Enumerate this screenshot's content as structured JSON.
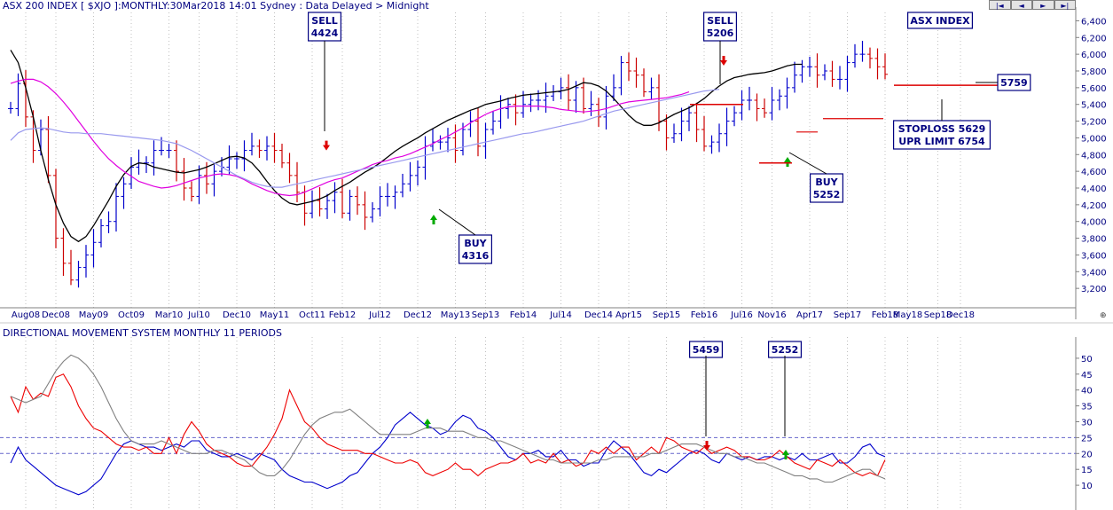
{
  "header": {
    "title": "ASX 200 INDEX [ $XJO ]:MONTHLY:30Mar2018 14:01 Sydney : Data Delayed > Midnight",
    "nav": [
      {
        "label": "|◄",
        "icon": "first-page-icon"
      },
      {
        "label": "◄",
        "icon": "previous-icon"
      },
      {
        "label": "►",
        "icon": "next-icon"
      },
      {
        "label": "►|",
        "icon": "last-page-icon"
      }
    ]
  },
  "colors": {
    "up_bar": "#0000cc",
    "down_bar": "#cc0000",
    "ma_fast": "#000000",
    "ma_mid": "#e000e0",
    "ma_slow": "#9999ee",
    "di_plus": "#0000cc",
    "di_minus": "#ee0000",
    "adx": "#808080",
    "buy_arrow": "#00aa00",
    "sell_arrow": "#dd0000",
    "label_border": "#000080",
    "level_line": "#dd0000"
  },
  "chart_data": [
    {
      "type": "ohlc",
      "panel": "price",
      "title": "ASX 200 INDEX [ $XJO ]:MONTHLY",
      "ylim": [
        3000,
        6500
      ],
      "xlim": [
        0,
        136
      ],
      "yticks": [
        3200,
        3400,
        3600,
        3800,
        4000,
        4200,
        4400,
        4600,
        4800,
        5000,
        5200,
        5400,
        5600,
        5800,
        6000,
        6200,
        6400
      ],
      "ytick_labels": [
        "3,200",
        "3,400",
        "3,600",
        "3,800",
        "4,000",
        "4,200",
        "4,400",
        "4,600",
        "4,800",
        "5,000",
        "5,200",
        "5,400",
        "5,600",
        "5,800",
        "6,000",
        "6,200",
        "6,400"
      ],
      "xtick_labels": [
        {
          "label": "Aug08",
          "x": 2
        },
        {
          "label": "Dec08",
          "x": 6
        },
        {
          "label": "May09",
          "x": 11
        },
        {
          "label": "Oct09",
          "x": 16
        },
        {
          "label": "Mar10",
          "x": 21
        },
        {
          "label": "Jul10",
          "x": 25
        },
        {
          "label": "Dec10",
          "x": 30
        },
        {
          "label": "May11",
          "x": 35
        },
        {
          "label": "Oct11",
          "x": 40
        },
        {
          "label": "Feb12",
          "x": 44
        },
        {
          "label": "Jul12",
          "x": 49
        },
        {
          "label": "Dec12",
          "x": 54
        },
        {
          "label": "May13",
          "x": 59
        },
        {
          "label": "Sep13",
          "x": 63
        },
        {
          "label": "Feb14",
          "x": 68
        },
        {
          "label": "Jul14",
          "x": 73
        },
        {
          "label": "Dec14",
          "x": 78
        },
        {
          "label": "Apr15",
          "x": 82
        },
        {
          "label": "Sep15",
          "x": 87
        },
        {
          "label": "Feb16",
          "x": 92
        },
        {
          "label": "Jul16",
          "x": 97
        },
        {
          "label": "Nov16",
          "x": 101
        },
        {
          "label": "Apr17",
          "x": 106
        },
        {
          "label": "Sep17",
          "x": 111
        },
        {
          "label": "Feb18",
          "x": 116
        },
        {
          "label": "May18",
          "x": 119
        },
        {
          "label": "Sep18",
          "x": 123
        },
        {
          "label": "Dec18",
          "x": 126
        }
      ],
      "bars_start_x": 0,
      "close": [
        5350,
        5650,
        5250,
        4850,
        5100,
        4550,
        3800,
        3500,
        3300,
        3450,
        3600,
        3750,
        3950,
        4000,
        4300,
        4450,
        4650,
        4700,
        4700,
        4850,
        4850,
        4850,
        4600,
        4400,
        4300,
        4550,
        4450,
        4600,
        4650,
        4750,
        4750,
        4850,
        4900,
        4850,
        4900,
        4850,
        4700,
        4550,
        4350,
        4100,
        4250,
        4150,
        4250,
        4350,
        4100,
        4300,
        4200,
        4050,
        4150,
        4300,
        4300,
        4350,
        4450,
        4550,
        4650,
        4900,
        4950,
        4950,
        5000,
        4850,
        5100,
        5200,
        4900,
        5100,
        5200,
        5350,
        5400,
        5300,
        5400,
        5450,
        5450,
        5500,
        5550,
        5600,
        5450,
        5600,
        5350,
        5400,
        5250,
        5500,
        5600,
        5900,
        5800,
        5750,
        5550,
        5600,
        5200,
        5000,
        5050,
        5200,
        5300,
        5100,
        4900,
        4950,
        5050,
        5200,
        5300,
        5450,
        5450,
        5350,
        5300,
        5450,
        5500,
        5600,
        5750,
        5850,
        5850,
        5750,
        5800,
        5700,
        5700,
        5900,
        6000,
        6000,
        5950,
        5850,
        5760
      ],
      "series": [
        {
          "name": "",
          "role": "ma_fast",
          "start_x": 0,
          "values": [
            6050,
            5900,
            5600,
            5250,
            4850,
            4500,
            4200,
            3980,
            3820,
            3760,
            3820,
            3950,
            4100,
            4250,
            4420,
            4560,
            4660,
            4700,
            4690,
            4650,
            4630,
            4610,
            4590,
            4580,
            4600,
            4620,
            4650,
            4690,
            4730,
            4770,
            4780,
            4760,
            4700,
            4600,
            4480,
            4370,
            4280,
            4220,
            4200,
            4220,
            4240,
            4270,
            4310,
            4370,
            4420,
            4470,
            4530,
            4590,
            4640,
            4700,
            4770,
            4840,
            4900,
            4950,
            5000,
            5060,
            5110,
            5160,
            5210,
            5250,
            5290,
            5330,
            5360,
            5400,
            5420,
            5440,
            5470,
            5490,
            5510,
            5520,
            5530,
            5540,
            5550,
            5560,
            5580,
            5620,
            5660,
            5650,
            5620,
            5560,
            5470,
            5370,
            5270,
            5190,
            5150,
            5150,
            5180,
            5230,
            5280,
            5320,
            5360,
            5410,
            5470,
            5550,
            5620,
            5680,
            5720,
            5740,
            5760,
            5770,
            5780,
            5800,
            5830,
            5860,
            5880,
            5880
          ]
        },
        {
          "name": "",
          "role": "ma_mid",
          "start_x": 0,
          "values": [
            5650,
            5680,
            5700,
            5700,
            5670,
            5610,
            5530,
            5430,
            5320,
            5200,
            5080,
            4960,
            4850,
            4750,
            4670,
            4600,
            4540,
            4480,
            4450,
            4420,
            4400,
            4410,
            4430,
            4460,
            4490,
            4520,
            4540,
            4560,
            4570,
            4560,
            4540,
            4500,
            4450,
            4410,
            4370,
            4340,
            4320,
            4310,
            4320,
            4350,
            4390,
            4430,
            4470,
            4500,
            4520,
            4560,
            4600,
            4640,
            4680,
            4710,
            4730,
            4760,
            4780,
            4810,
            4850,
            4890,
            4930,
            4980,
            5020,
            5070,
            5120,
            5180,
            5230,
            5280,
            5320,
            5350,
            5370,
            5380,
            5380,
            5380,
            5380,
            5370,
            5360,
            5340,
            5330,
            5320,
            5310,
            5320,
            5330,
            5350,
            5380,
            5410,
            5430,
            5440,
            5450,
            5460,
            5470,
            5480,
            5500,
            5520,
            5550
          ]
        },
        {
          "name": "",
          "role": "ma_slow",
          "start_x": 0,
          "values": [
            4970,
            5060,
            5100,
            5110,
            5120,
            5110,
            5090,
            5070,
            5060,
            5060,
            5050,
            5050,
            5050,
            5040,
            5030,
            5020,
            5010,
            5000,
            4990,
            4980,
            4970,
            4950,
            4930,
            4890,
            4850,
            4800,
            4750,
            4700,
            4650,
            4600,
            4550,
            4510,
            4470,
            4440,
            4420,
            4410,
            4410,
            4430,
            4450,
            4470,
            4490,
            4510,
            4530,
            4550,
            4570,
            4590,
            4610,
            4630,
            4650,
            4670,
            4690,
            4710,
            4730,
            4750,
            4770,
            4790,
            4810,
            4830,
            4850,
            4870,
            4890,
            4910,
            4930,
            4950,
            4970,
            4990,
            5010,
            5030,
            5050,
            5060,
            5080,
            5100,
            5120,
            5140,
            5160,
            5180,
            5200,
            5230,
            5260,
            5290,
            5320,
            5340,
            5360,
            5380,
            5400,
            5420,
            5440,
            5460,
            5480,
            5500,
            5520,
            5540,
            5560,
            5570,
            5580
          ]
        }
      ],
      "signals": [
        {
          "type": "sell",
          "x": 44,
          "price": 4850,
          "label": [
            "SELL",
            "4424"
          ]
        },
        {
          "type": "buy",
          "x": 59,
          "price": 4010,
          "label": [
            "BUY",
            "4316"
          ]
        },
        {
          "type": "sell",
          "x": 98,
          "price": 6000,
          "label": [
            "SELL",
            "5206"
          ]
        },
        {
          "type": "buy",
          "x": 107,
          "price": 4730,
          "label": [
            "BUY",
            "5252"
          ]
        }
      ],
      "annotations": [
        {
          "text": [
            "ASX INDEX"
          ]
        },
        {
          "text": [
            "5759"
          ]
        },
        {
          "text": [
            "STOPLOSS 5629",
            "UPR LIMIT 6754"
          ]
        }
      ],
      "levels": [
        5400,
        4700,
        5070,
        5230,
        5629
      ]
    },
    {
      "type": "line",
      "panel": "indicator",
      "title": "DIRECTIONAL MOVEMENT SYSTEM MONTHLY 11 PERIODS",
      "ylim": [
        5,
        55
      ],
      "xlim": [
        0,
        136
      ],
      "yticks": [
        10,
        15,
        20,
        25,
        30,
        35,
        40,
        45,
        50
      ],
      "reference_lines": [
        25,
        20
      ],
      "series": [
        {
          "name": "",
          "role": "di_plus",
          "start_x": 0,
          "values": [
            17,
            22,
            18,
            16,
            14,
            12,
            10,
            9,
            8,
            7,
            8,
            10,
            12,
            16,
            20,
            23,
            24,
            23,
            22,
            22,
            21,
            22,
            23,
            22,
            24,
            24,
            21,
            20,
            19,
            19,
            20,
            19,
            18,
            20,
            19,
            18,
            15,
            13,
            12,
            11,
            11,
            10,
            9,
            10,
            11,
            13,
            14,
            17,
            20,
            22,
            25,
            29,
            31,
            33,
            31,
            29,
            28,
            26,
            27,
            30,
            32,
            31,
            28,
            27,
            25,
            22,
            19,
            18,
            20,
            20,
            21,
            19,
            19,
            21,
            18,
            18,
            16,
            17,
            17,
            21,
            24,
            22,
            20,
            17,
            14,
            13,
            15,
            14,
            16,
            18,
            20,
            21,
            20,
            18,
            17,
            20,
            19,
            18,
            19,
            18,
            19,
            19,
            18,
            19,
            18,
            20,
            18,
            18,
            19,
            20,
            17,
            17,
            19,
            22,
            23,
            20,
            19
          ]
        },
        {
          "name": "",
          "role": "di_minus",
          "start_x": 0,
          "values": [
            38,
            33,
            41,
            37,
            39,
            38,
            44,
            45,
            41,
            35,
            31,
            28,
            27,
            25,
            23,
            22,
            22,
            21,
            22,
            20,
            20,
            25,
            20,
            26,
            30,
            27,
            23,
            21,
            20,
            19,
            17,
            16,
            16,
            19,
            22,
            26,
            31,
            40,
            35,
            30,
            28,
            25,
            23,
            22,
            21,
            21,
            21,
            20,
            20,
            19,
            18,
            17,
            17,
            18,
            17,
            14,
            13,
            14,
            15,
            17,
            15,
            15,
            13,
            15,
            16,
            17,
            17,
            18,
            20,
            17,
            18,
            17,
            20,
            17,
            18,
            16,
            17,
            21,
            20,
            22,
            20,
            22,
            22,
            18,
            20,
            22,
            20,
            25,
            24,
            22,
            21,
            20,
            22,
            20,
            21,
            22,
            21,
            19,
            19,
            18,
            18,
            19,
            21,
            19,
            17,
            16,
            15,
            18,
            17,
            16,
            18,
            16,
            14,
            13,
            14,
            13,
            18
          ]
        },
        {
          "name": "",
          "role": "adx",
          "start_x": 0,
          "values": [
            38,
            37,
            36,
            37,
            38,
            42,
            46,
            49,
            51,
            50,
            48,
            45,
            41,
            36,
            31,
            27,
            24,
            23,
            23,
            23,
            24,
            23,
            22,
            21,
            20,
            20,
            20,
            21,
            21,
            20,
            19,
            18,
            16,
            14,
            13,
            13,
            15,
            18,
            22,
            26,
            29,
            31,
            32,
            33,
            33,
            34,
            32,
            30,
            28,
            26,
            26,
            26,
            26,
            26,
            27,
            28,
            28,
            28,
            27,
            27,
            27,
            26,
            25,
            25,
            24,
            24,
            23,
            22,
            21,
            20,
            19,
            18,
            18,
            17,
            17,
            17,
            17,
            17,
            18,
            18,
            19,
            19,
            19,
            19,
            19,
            20,
            20,
            21,
            22,
            23,
            23,
            23,
            22,
            21,
            20,
            20,
            19,
            19,
            18,
            17,
            17,
            16,
            15,
            14,
            13,
            13,
            12,
            12,
            11,
            11,
            12,
            13,
            14,
            15,
            15,
            13,
            12
          ]
        }
      ],
      "signals": [
        {
          "type": "sell",
          "x": 98,
          "label": [
            "5459"
          ]
        },
        {
          "type": "buy",
          "x": 107,
          "label": [
            "5252"
          ]
        },
        {
          "type": "buy",
          "x": 59
        }
      ]
    }
  ]
}
